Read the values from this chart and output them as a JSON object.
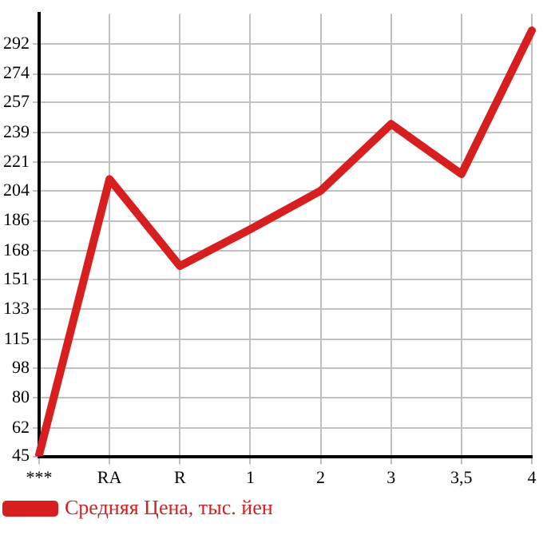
{
  "chart_data": {
    "type": "line",
    "categories": [
      "***",
      "RA",
      "R",
      "1",
      "2",
      "3",
      "3,5",
      "4"
    ],
    "series": [
      {
        "name": "Средняя Цена, тыс. йен",
        "color": "#d71f1f",
        "values": [
          46,
          211,
          159,
          181,
          204,
          244,
          214,
          300
        ]
      }
    ],
    "ylim": [
      45,
      310
    ],
    "yticks": [
      45,
      62,
      80,
      98,
      115,
      133,
      151,
      168,
      186,
      204,
      221,
      239,
      257,
      274,
      292
    ],
    "grid": true,
    "legend": "bottom left",
    "marker": "none",
    "line_style": "solid"
  }
}
